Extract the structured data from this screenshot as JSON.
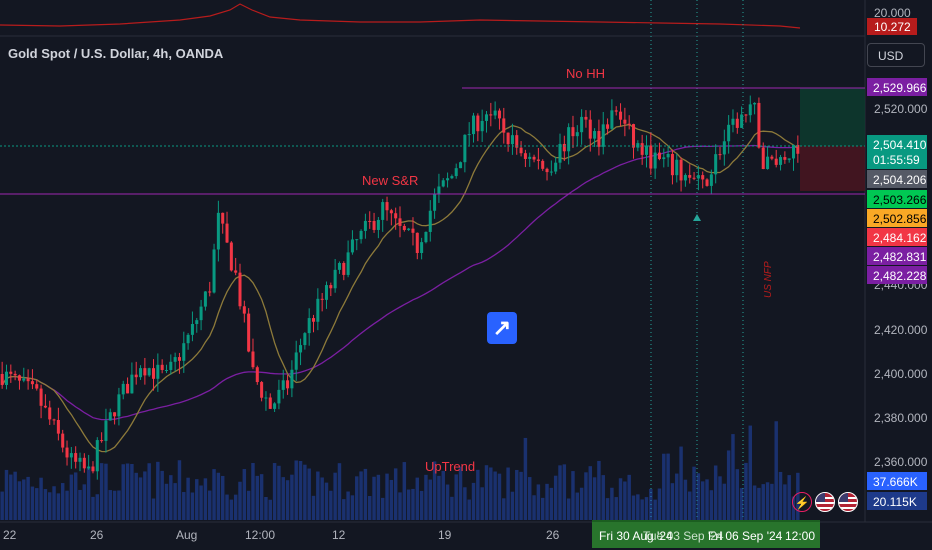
{
  "header": {
    "symbol_title": "Gold Spot / U.S. Dollar, 4h, OANDA",
    "currency_button": "USD"
  },
  "indicator_pane": {
    "ticks": [
      "20.000"
    ],
    "current_value": "10.272"
  },
  "price_axis": {
    "ticks": [
      "2,520.000",
      "2,440.000",
      "2,420.000",
      "2,400.000",
      "2,380.000",
      "2,360.000"
    ],
    "labels": [
      {
        "text": "2,529.966",
        "color": "#7b1fa2"
      },
      {
        "text": "2,504.410",
        "color": "#089981"
      },
      {
        "text": "01:55:59",
        "color": "#089981"
      },
      {
        "text": "2,504.206",
        "color": "#555a66"
      },
      {
        "text": "2,503.266",
        "color": "#00c853"
      },
      {
        "text": "2,502.856",
        "color": "#f9a825"
      },
      {
        "text": "2,484.162",
        "color": "#f23645"
      },
      {
        "text": "2,482.831",
        "color": "#7b1fa2"
      },
      {
        "text": "2,482.228",
        "color": "#7b1fa2"
      }
    ],
    "volume_labels": [
      {
        "text": "37.666K",
        "color": "#2962ff"
      },
      {
        "text": "20.115K",
        "color": "#1e3a8a"
      }
    ]
  },
  "time_axis": {
    "ticks": [
      "22",
      "26",
      "Aug",
      "12:00",
      "12",
      "19",
      "26",
      "Sep",
      "9",
      "12:00"
    ],
    "highlight_labels": [
      "Fri 30 Aug '24",
      "Tue 03 Sep '24",
      "Fri 06 Sep '24",
      "12:00"
    ]
  },
  "annotations": {
    "no_hh": "No HH",
    "new_sr": "New S&R",
    "uptrend": "UpTrend",
    "us_nfp": "US NFP"
  },
  "colors": {
    "background": "#131722",
    "bull": "#089981",
    "bear": "#f23645",
    "annotation": "#f23645",
    "level_line": "#9c27b0",
    "ma_slow": "#7b1fa2",
    "ma_fast": "#8d7a3a",
    "volume": "#2962ff"
  },
  "chart_data": {
    "type": "candlestick",
    "title": "Gold Spot / U.S. Dollar, 4h, OANDA",
    "y_range": [
      2340,
      2540
    ],
    "levels": {
      "resistance": 2529.966,
      "support": 2482.5,
      "current_price": 2504.41
    },
    "close_path": [
      [
        0,
        2400
      ],
      [
        8,
        2390
      ],
      [
        16,
        2360
      ],
      [
        20,
        2355
      ],
      [
        26,
        2385
      ],
      [
        32,
        2405
      ],
      [
        38,
        2398
      ],
      [
        44,
        2420
      ],
      [
        48,
        2440
      ],
      [
        50,
        2470
      ],
      [
        54,
        2445
      ],
      [
        58,
        2400
      ],
      [
        62,
        2385
      ],
      [
        66,
        2395
      ],
      [
        70,
        2420
      ],
      [
        76,
        2440
      ],
      [
        82,
        2460
      ],
      [
        88,
        2475
      ],
      [
        92,
        2465
      ],
      [
        96,
        2458
      ],
      [
        100,
        2480
      ],
      [
        104,
        2490
      ],
      [
        108,
        2510
      ],
      [
        112,
        2520
      ],
      [
        118,
        2505
      ],
      [
        122,
        2498
      ],
      [
        126,
        2493
      ],
      [
        130,
        2505
      ],
      [
        134,
        2515
      ],
      [
        138,
        2508
      ],
      [
        142,
        2520
      ],
      [
        146,
        2505
      ],
      [
        150,
        2498
      ],
      [
        154,
        2495
      ],
      [
        158,
        2490
      ],
      [
        162,
        2485
      ],
      [
        166,
        2502
      ],
      [
        170,
        2515
      ],
      [
        174,
        2519
      ],
      [
        176,
        2495
      ],
      [
        180,
        2498
      ],
      [
        184,
        2504
      ]
    ]
  }
}
